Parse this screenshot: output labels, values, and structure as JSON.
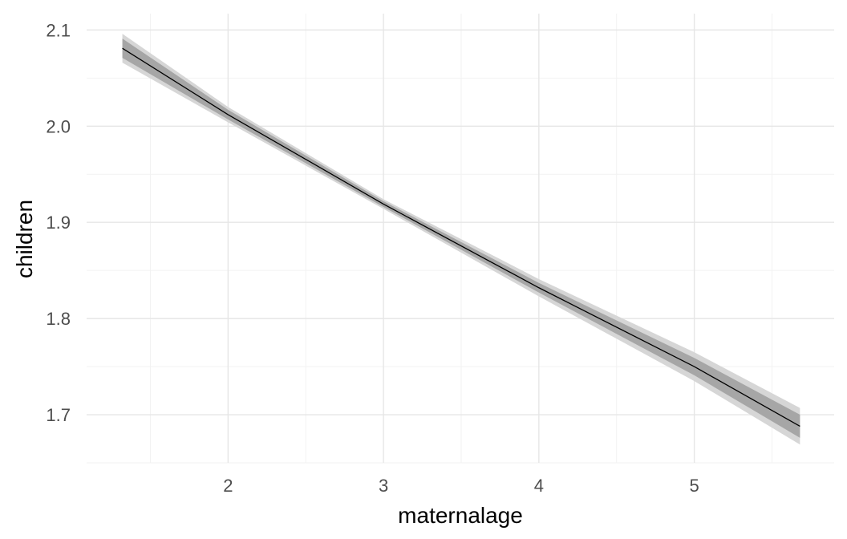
{
  "chart_data": {
    "type": "line",
    "xlabel": "maternalage",
    "ylabel": "children",
    "xlim": [
      1.09,
      5.9
    ],
    "ylim": [
      1.65,
      2.117
    ],
    "x_ticks": [
      2,
      3,
      4,
      5
    ],
    "x_tick_labels": [
      "2",
      "3",
      "4",
      "5"
    ],
    "y_ticks": [
      1.7,
      1.8,
      1.9,
      2.0,
      2.1
    ],
    "y_tick_labels": [
      "1.7",
      "1.8",
      "1.9",
      "2.0",
      "2.1"
    ],
    "grid": true,
    "series": [
      {
        "x": [
          1.32,
          2.0,
          3.0,
          4.0,
          5.0,
          5.68
        ],
        "y": [
          2.081,
          2.012,
          1.919,
          1.832,
          1.75,
          1.688
        ],
        "inner_band_lower": [
          2.071,
          2.007,
          1.916,
          1.827,
          1.741,
          1.676
        ],
        "inner_band_upper": [
          2.091,
          2.017,
          1.922,
          1.837,
          1.759,
          1.7
        ],
        "outer_band_lower": [
          2.066,
          2.004,
          1.914,
          1.823,
          1.735,
          1.669
        ],
        "outer_band_upper": [
          2.096,
          2.02,
          1.924,
          1.841,
          1.765,
          1.707
        ]
      }
    ],
    "colors": {
      "line": "#000000",
      "inner_band": "#a6a6a6",
      "outer_band": "#d6d6d6",
      "grid_major": "#e6e6e6",
      "grid_minor": "#f2f2f2"
    }
  }
}
